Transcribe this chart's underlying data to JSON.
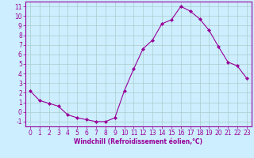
{
  "x": [
    0,
    1,
    2,
    3,
    4,
    5,
    6,
    7,
    8,
    9,
    10,
    11,
    12,
    13,
    14,
    15,
    16,
    17,
    18,
    19,
    20,
    21,
    22,
    23
  ],
  "y": [
    2.2,
    1.2,
    0.9,
    0.6,
    -0.3,
    -0.6,
    -0.8,
    -1.0,
    -1.0,
    -0.6,
    2.2,
    4.5,
    6.6,
    7.5,
    9.2,
    9.6,
    11.0,
    10.5,
    9.7,
    8.5,
    6.8,
    5.2,
    4.8,
    3.5
  ],
  "line_color": "#990099",
  "marker": "D",
  "marker_size": 2,
  "bg_color": "#cceeff",
  "grid_color": "#aacccc",
  "xlabel": "Windchill (Refroidissement éolien,°C)",
  "xlim": [
    -0.5,
    23.5
  ],
  "ylim": [
    -1.5,
    11.5
  ],
  "yticks": [
    -1,
    0,
    1,
    2,
    3,
    4,
    5,
    6,
    7,
    8,
    9,
    10,
    11
  ],
  "xticks": [
    0,
    1,
    2,
    3,
    4,
    5,
    6,
    7,
    8,
    9,
    10,
    11,
    12,
    13,
    14,
    15,
    16,
    17,
    18,
    19,
    20,
    21,
    22,
    23
  ],
  "tick_color": "#990099",
  "label_color": "#990099",
  "spine_color": "#990099",
  "xlabel_fontsize": 5.5,
  "tick_fontsize": 5.5
}
